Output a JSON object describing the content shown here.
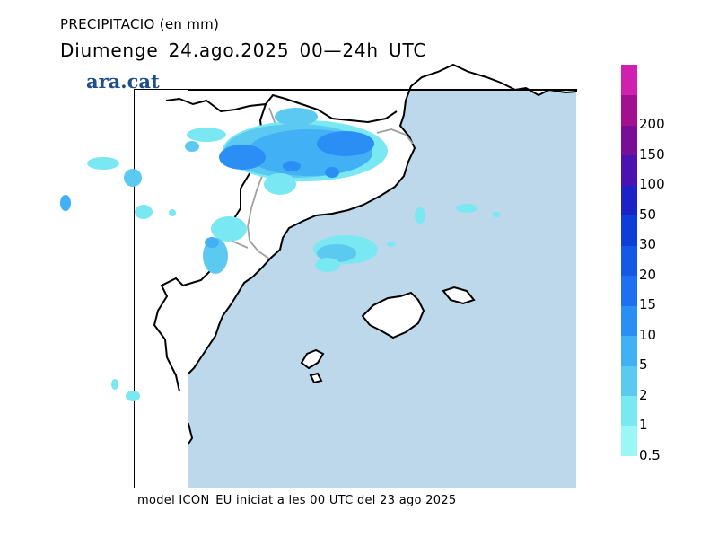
{
  "header": {
    "line1": "PRECIPITACIO (en mm)",
    "line2": "Diumenge  24.ago.2025  00—24h  UTC"
  },
  "brand": "ara.cat",
  "footer": "model ICON_EU iniciat a les 00 UTC del 23 ago 2025",
  "map": {
    "sea_color": "#bcd8ea",
    "land_color": "#ffffff",
    "coast_color": "#000000",
    "border_color": "#a0a0a0"
  },
  "legend": {
    "levels": [
      {
        "label": "0.5",
        "color": "#9cf6f6"
      },
      {
        "label": "1",
        "color": "#7ae8f2"
      },
      {
        "label": "2",
        "color": "#5bc9f0"
      },
      {
        "label": "5",
        "color": "#42b0f4"
      },
      {
        "label": "10",
        "color": "#2a8ef5"
      },
      {
        "label": "15",
        "color": "#1e6ff2"
      },
      {
        "label": "20",
        "color": "#1557e6"
      },
      {
        "label": "30",
        "color": "#0e3ed8"
      },
      {
        "label": "50",
        "color": "#1a22c8"
      },
      {
        "label": "100",
        "color": "#4a12b0"
      },
      {
        "label": "150",
        "color": "#780e98"
      },
      {
        "label": "200",
        "color": "#a21090"
      },
      {
        "label": "",
        "color": "#d020b0"
      }
    ]
  }
}
